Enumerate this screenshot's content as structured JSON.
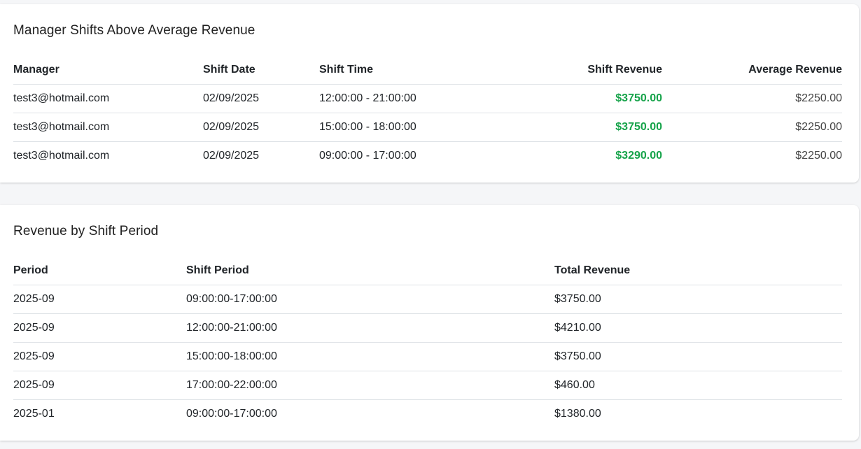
{
  "managers_card": {
    "title": "Manager Shifts Above Average Revenue",
    "headers": {
      "manager": "Manager",
      "shift_date": "Shift Date",
      "shift_time": "Shift Time",
      "shift_revenue": "Shift Revenue",
      "average_revenue": "Average Revenue"
    },
    "rows": [
      {
        "manager": "test3@hotmail.com",
        "shift_date": "02/09/2025",
        "shift_time": "12:00:00 - 21:00:00",
        "shift_revenue": "$3750.00",
        "average_revenue": "$2250.00"
      },
      {
        "manager": "test3@hotmail.com",
        "shift_date": "02/09/2025",
        "shift_time": "15:00:00 - 18:00:00",
        "shift_revenue": "$3750.00",
        "average_revenue": "$2250.00"
      },
      {
        "manager": "test3@hotmail.com",
        "shift_date": "02/09/2025",
        "shift_time": "09:00:00 - 17:00:00",
        "shift_revenue": "$3290.00",
        "average_revenue": "$2250.00"
      }
    ]
  },
  "period_card": {
    "title": "Revenue by Shift Period",
    "headers": {
      "period": "Period",
      "shift_period": "Shift Period",
      "total_revenue": "Total Revenue"
    },
    "rows": [
      {
        "period": "2025-09",
        "shift_period": "09:00:00-17:00:00",
        "total_revenue": "$3750.00"
      },
      {
        "period": "2025-09",
        "shift_period": "12:00:00-21:00:00",
        "total_revenue": "$4210.00"
      },
      {
        "period": "2025-09",
        "shift_period": "15:00:00-18:00:00",
        "total_revenue": "$3750.00"
      },
      {
        "period": "2025-09",
        "shift_period": "17:00:00-22:00:00",
        "total_revenue": "$460.00"
      },
      {
        "period": "2025-01",
        "shift_period": "09:00:00-17:00:00",
        "total_revenue": "$1380.00"
      }
    ]
  },
  "colors": {
    "above_average": "#16a34a"
  }
}
